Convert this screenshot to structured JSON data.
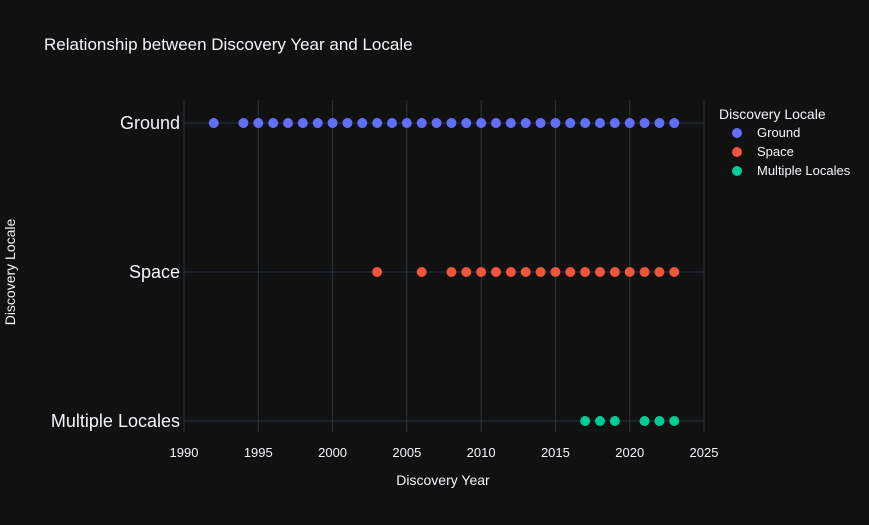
{
  "chart_data": {
    "type": "scatter",
    "title": "Relationship between Discovery Year and Locale",
    "xlabel": "Discovery Year",
    "ylabel": "Discovery Locale",
    "xlim": [
      1990,
      2025
    ],
    "x_ticks": [
      1990,
      1995,
      2000,
      2005,
      2010,
      2015,
      2020,
      2025
    ],
    "categories": [
      "Ground",
      "Space",
      "Multiple Locales"
    ],
    "grid": true,
    "legend": {
      "title": "Discovery Locale",
      "position": "right"
    },
    "series": [
      {
        "name": "Ground",
        "color": "#636efa",
        "category": "Ground",
        "x": [
          1992,
          1994,
          1995,
          1996,
          1997,
          1998,
          1999,
          2000,
          2001,
          2002,
          2003,
          2004,
          2005,
          2006,
          2007,
          2008,
          2009,
          2010,
          2011,
          2012,
          2013,
          2014,
          2015,
          2016,
          2017,
          2018,
          2019,
          2020,
          2021,
          2022,
          2023
        ]
      },
      {
        "name": "Space",
        "color": "#ef553b",
        "category": "Space",
        "x": [
          2003,
          2006,
          2008,
          2009,
          2010,
          2011,
          2012,
          2013,
          2014,
          2015,
          2016,
          2017,
          2018,
          2019,
          2020,
          2021,
          2022,
          2023
        ]
      },
      {
        "name": "Multiple Locales",
        "color": "#00cc96",
        "category": "Multiple Locales",
        "x": [
          2017,
          2018,
          2019,
          2021,
          2022,
          2023
        ]
      }
    ]
  }
}
